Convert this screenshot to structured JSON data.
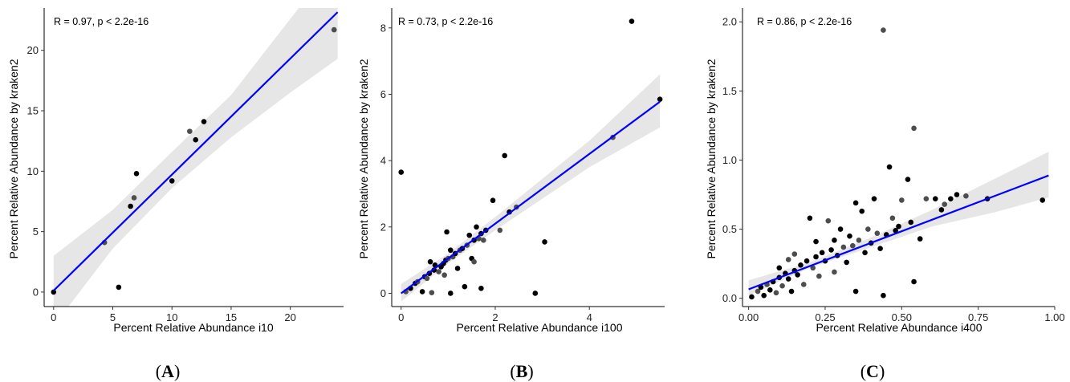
{
  "chart_data": [
    {
      "type": "scatter",
      "panel_label": "A",
      "stat_text": "R = 0.97, p < 2.2e-16",
      "xlabel": "Percent Relative Abundance i10",
      "ylabel": "Percent Relative Abundance by kraken2",
      "xlim": [
        -0.8,
        24.5
      ],
      "ylim": [
        -1.2,
        23.5
      ],
      "xticks": [
        0,
        5,
        10,
        15,
        20
      ],
      "xtick_labels": [
        "0",
        "5",
        "10",
        "15",
        "20"
      ],
      "yticks": [
        0,
        5,
        10,
        15,
        20
      ],
      "ytick_labels": [
        "0",
        "5",
        "10",
        "15",
        "20"
      ],
      "grid": false,
      "fit_line": {
        "intercept": 0.12,
        "slope": 0.96,
        "color": "#0000ff"
      },
      "confidence_band": [
        {
          "x": 0,
          "lo": -2.8,
          "hi": 3.0
        },
        {
          "x": 5,
          "lo": 3.6,
          "hi": 6.8
        },
        {
          "x": 10,
          "lo": 8.6,
          "hi": 11.6
        },
        {
          "x": 15,
          "lo": 12.8,
          "hi": 16.3
        },
        {
          "x": 20,
          "lo": 16.5,
          "hi": 22.6
        },
        {
          "x": 24,
          "lo": 19.3,
          "hi": 27.6
        }
      ],
      "points": [
        {
          "x": 0.0,
          "y": 0.0
        },
        {
          "x": 4.3,
          "y": 4.1
        },
        {
          "x": 5.5,
          "y": 0.4
        },
        {
          "x": 6.5,
          "y": 7.1
        },
        {
          "x": 6.8,
          "y": 7.8
        },
        {
          "x": 7.0,
          "y": 9.8
        },
        {
          "x": 10.0,
          "y": 9.2
        },
        {
          "x": 11.5,
          "y": 13.3
        },
        {
          "x": 12.0,
          "y": 12.6
        },
        {
          "x": 12.7,
          "y": 14.1
        },
        {
          "x": 23.7,
          "y": 21.7
        }
      ]
    },
    {
      "type": "scatter",
      "panel_label": "B",
      "stat_text": "R = 0.73, p < 2.2e-16",
      "xlabel": "Percent Relative Abundance i100",
      "ylabel": "Percent Relative Abundance by kraken2",
      "xlim": [
        -0.2,
        5.6
      ],
      "ylim": [
        -0.4,
        8.6
      ],
      "xticks": [
        0,
        2,
        4
      ],
      "xtick_labels": [
        "0",
        "2",
        "4"
      ],
      "yticks": [
        0,
        2,
        4,
        6,
        8
      ],
      "ytick_labels": [
        "0",
        "2",
        "4",
        "6",
        "8"
      ],
      "grid": false,
      "fit_line": {
        "intercept": 0.0,
        "slope": 1.05,
        "color": "#0000ff"
      },
      "confidence_band": [
        {
          "x": 0,
          "lo": -0.25,
          "hi": 0.28
        },
        {
          "x": 1,
          "lo": 0.9,
          "hi": 1.2
        },
        {
          "x": 2,
          "lo": 1.9,
          "hi": 2.3
        },
        {
          "x": 3,
          "lo": 2.85,
          "hi": 3.45
        },
        {
          "x": 4,
          "lo": 3.8,
          "hi": 4.6
        },
        {
          "x": 5.5,
          "lo": 5.0,
          "hi": 6.6
        }
      ],
      "points": [
        {
          "x": 0.0,
          "y": 3.65
        },
        {
          "x": 0.1,
          "y": 0.05
        },
        {
          "x": 0.2,
          "y": 0.15
        },
        {
          "x": 0.3,
          "y": 0.3
        },
        {
          "x": 0.35,
          "y": 0.35
        },
        {
          "x": 0.45,
          "y": 0.05
        },
        {
          "x": 0.5,
          "y": 0.5
        },
        {
          "x": 0.55,
          "y": 0.45
        },
        {
          "x": 0.6,
          "y": 0.6
        },
        {
          "x": 0.62,
          "y": 0.95
        },
        {
          "x": 0.65,
          "y": 0.02
        },
        {
          "x": 0.7,
          "y": 0.7
        },
        {
          "x": 0.72,
          "y": 0.85
        },
        {
          "x": 0.8,
          "y": 0.65
        },
        {
          "x": 0.85,
          "y": 0.8
        },
        {
          "x": 0.9,
          "y": 0.9
        },
        {
          "x": 0.92,
          "y": 0.55
        },
        {
          "x": 0.95,
          "y": 1.0
        },
        {
          "x": 0.97,
          "y": 1.85
        },
        {
          "x": 1.0,
          "y": 1.05
        },
        {
          "x": 1.05,
          "y": 0.0
        },
        {
          "x": 1.05,
          "y": 1.3
        },
        {
          "x": 1.1,
          "y": 1.1
        },
        {
          "x": 1.15,
          "y": 1.2
        },
        {
          "x": 1.2,
          "y": 0.75
        },
        {
          "x": 1.25,
          "y": 1.3
        },
        {
          "x": 1.3,
          "y": 1.35
        },
        {
          "x": 1.35,
          "y": 0.2
        },
        {
          "x": 1.4,
          "y": 1.45
        },
        {
          "x": 1.45,
          "y": 1.75
        },
        {
          "x": 1.5,
          "y": 1.05
        },
        {
          "x": 1.55,
          "y": 0.95
        },
        {
          "x": 1.55,
          "y": 1.6
        },
        {
          "x": 1.6,
          "y": 2.0
        },
        {
          "x": 1.65,
          "y": 1.65
        },
        {
          "x": 1.7,
          "y": 0.15
        },
        {
          "x": 1.7,
          "y": 1.8
        },
        {
          "x": 1.75,
          "y": 1.6
        },
        {
          "x": 1.8,
          "y": 1.9
        },
        {
          "x": 1.95,
          "y": 2.8
        },
        {
          "x": 2.1,
          "y": 1.9
        },
        {
          "x": 2.2,
          "y": 4.15
        },
        {
          "x": 2.3,
          "y": 2.45
        },
        {
          "x": 2.45,
          "y": 2.6
        },
        {
          "x": 2.85,
          "y": 0.0
        },
        {
          "x": 3.05,
          "y": 1.55
        },
        {
          "x": 4.5,
          "y": 4.7
        },
        {
          "x": 4.9,
          "y": 8.2
        },
        {
          "x": 5.5,
          "y": 5.85
        }
      ]
    },
    {
      "type": "scatter",
      "panel_label": "C",
      "stat_text": "R = 0.86, p < 2.2e-16",
      "xlabel": "Percent Relative Abundance i400",
      "ylabel": "Percent Relative Abundance by kraken2",
      "xlim": [
        -0.02,
        1.0
      ],
      "ylim": [
        -0.06,
        2.1
      ],
      "xticks": [
        0.0,
        0.25,
        0.5,
        0.75,
        1.0
      ],
      "xtick_labels": [
        "0.00",
        "0.25",
        "0.50",
        "0.75",
        "1.00"
      ],
      "yticks": [
        0.0,
        0.5,
        1.0,
        1.5,
        2.0
      ],
      "ytick_labels": [
        "0.0",
        "0.5",
        "1.0",
        "1.5",
        "2.0"
      ],
      "grid": false,
      "fit_line": {
        "intercept": 0.065,
        "slope": 0.84,
        "color": "#0000ff"
      },
      "confidence_band": [
        {
          "x": 0.0,
          "lo": 0.02,
          "hi": 0.13
        },
        {
          "x": 0.2,
          "lo": 0.22,
          "hi": 0.26
        },
        {
          "x": 0.4,
          "lo": 0.37,
          "hi": 0.44
        },
        {
          "x": 0.6,
          "lo": 0.52,
          "hi": 0.64
        },
        {
          "x": 0.8,
          "lo": 0.62,
          "hi": 0.86
        },
        {
          "x": 0.98,
          "lo": 0.73,
          "hi": 1.06
        }
      ],
      "points": [
        {
          "x": 0.01,
          "y": 0.01
        },
        {
          "x": 0.03,
          "y": 0.05
        },
        {
          "x": 0.04,
          "y": 0.08
        },
        {
          "x": 0.05,
          "y": 0.02
        },
        {
          "x": 0.06,
          "y": 0.1
        },
        {
          "x": 0.07,
          "y": 0.06
        },
        {
          "x": 0.08,
          "y": 0.12
        },
        {
          "x": 0.09,
          "y": 0.04
        },
        {
          "x": 0.1,
          "y": 0.15
        },
        {
          "x": 0.1,
          "y": 0.22
        },
        {
          "x": 0.11,
          "y": 0.09
        },
        {
          "x": 0.12,
          "y": 0.18
        },
        {
          "x": 0.13,
          "y": 0.14
        },
        {
          "x": 0.13,
          "y": 0.28
        },
        {
          "x": 0.14,
          "y": 0.05
        },
        {
          "x": 0.15,
          "y": 0.2
        },
        {
          "x": 0.15,
          "y": 0.32
        },
        {
          "x": 0.16,
          "y": 0.17
        },
        {
          "x": 0.17,
          "y": 0.24
        },
        {
          "x": 0.18,
          "y": 0.1
        },
        {
          "x": 0.19,
          "y": 0.27
        },
        {
          "x": 0.2,
          "y": 0.58
        },
        {
          "x": 0.21,
          "y": 0.22
        },
        {
          "x": 0.22,
          "y": 0.3
        },
        {
          "x": 0.22,
          "y": 0.41
        },
        {
          "x": 0.23,
          "y": 0.16
        },
        {
          "x": 0.24,
          "y": 0.33
        },
        {
          "x": 0.25,
          "y": 0.27
        },
        {
          "x": 0.26,
          "y": 0.56
        },
        {
          "x": 0.27,
          "y": 0.35
        },
        {
          "x": 0.28,
          "y": 0.42
        },
        {
          "x": 0.28,
          "y": 0.19
        },
        {
          "x": 0.29,
          "y": 0.31
        },
        {
          "x": 0.3,
          "y": 0.5
        },
        {
          "x": 0.31,
          "y": 0.37
        },
        {
          "x": 0.32,
          "y": 0.26
        },
        {
          "x": 0.33,
          "y": 0.45
        },
        {
          "x": 0.34,
          "y": 0.38
        },
        {
          "x": 0.35,
          "y": 0.05
        },
        {
          "x": 0.35,
          "y": 0.69
        },
        {
          "x": 0.36,
          "y": 0.42
        },
        {
          "x": 0.37,
          "y": 0.63
        },
        {
          "x": 0.38,
          "y": 0.33
        },
        {
          "x": 0.39,
          "y": 0.5
        },
        {
          "x": 0.4,
          "y": 0.4
        },
        {
          "x": 0.41,
          "y": 0.72
        },
        {
          "x": 0.42,
          "y": 0.47
        },
        {
          "x": 0.43,
          "y": 0.36
        },
        {
          "x": 0.44,
          "y": 0.02
        },
        {
          "x": 0.44,
          "y": 1.94
        },
        {
          "x": 0.45,
          "y": 0.46
        },
        {
          "x": 0.46,
          "y": 0.95
        },
        {
          "x": 0.47,
          "y": 0.58
        },
        {
          "x": 0.48,
          "y": 0.49
        },
        {
          "x": 0.49,
          "y": 0.52
        },
        {
          "x": 0.5,
          "y": 0.71
        },
        {
          "x": 0.52,
          "y": 0.86
        },
        {
          "x": 0.53,
          "y": 0.55
        },
        {
          "x": 0.54,
          "y": 1.23
        },
        {
          "x": 0.54,
          "y": 0.12
        },
        {
          "x": 0.56,
          "y": 0.43
        },
        {
          "x": 0.58,
          "y": 0.72
        },
        {
          "x": 0.61,
          "y": 0.72
        },
        {
          "x": 0.63,
          "y": 0.64
        },
        {
          "x": 0.64,
          "y": 0.68
        },
        {
          "x": 0.66,
          "y": 0.72
        },
        {
          "x": 0.68,
          "y": 0.75
        },
        {
          "x": 0.71,
          "y": 0.74
        },
        {
          "x": 0.78,
          "y": 0.72
        },
        {
          "x": 0.96,
          "y": 0.71
        }
      ]
    }
  ]
}
